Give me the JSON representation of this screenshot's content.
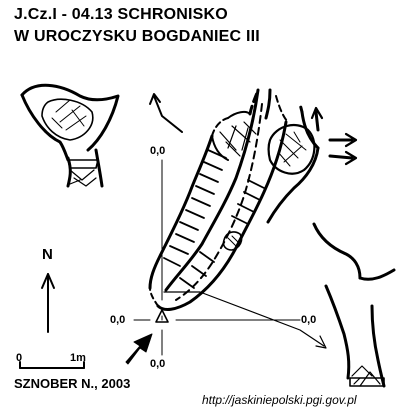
{
  "title": {
    "line1": "J.Cz.I - 04.13  SCHRONISKO",
    "line2": "W UROCZYSKU BOGDANIEC III"
  },
  "north_label": "N",
  "scale": {
    "start": "0",
    "end": "1m"
  },
  "datum_labels": {
    "top": "0,0",
    "left": "0,0",
    "right": "0,0",
    "bottom": "0,0"
  },
  "author": "SZNOBER N., 2003",
  "source_url": "http://jaskiniepolski.pgi.gov.pl"
}
